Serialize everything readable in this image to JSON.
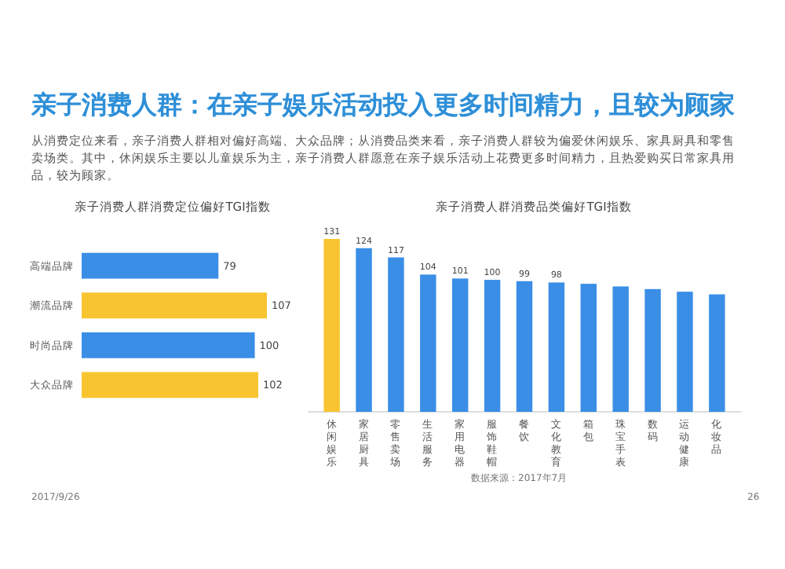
{
  "chart_data": [
    {
      "type": "other",
      "title": "亲子消费人群：在亲子娱乐活动投入更多时间精力，且较为顾家",
      "subtitle": "从消费定位来看，亲子消费人群相对偏好高端、大众品牌；从消费品类来看，亲子消费人群较为偏爱休闲娱乐、家具厨具和零售卖场类。其中，休闲娱乐主要以儿童娱乐为主，亲子消费人群愿意在亲子娱乐活动上花费更多时间精力，且热爱购买日常家具用品，较为顾家。",
      "annotations": [
        "数据来源：2017年7月",
        "2017/9/26",
        "26"
      ]
    },
    {
      "type": "bar",
      "orientation": "horizontal",
      "title": "亲子消费人群消费定位偏好TGI指数",
      "categories": [
        "高端品牌",
        "潮流品牌",
        "时尚品牌",
        "大众品牌"
      ],
      "values": [
        79,
        107,
        100,
        102
      ],
      "colors": [
        "#3a8ee6",
        "#f8c430",
        "#3a8ee6",
        "#f8c430"
      ],
      "data_labels": true
    },
    {
      "type": "bar",
      "title": "亲子消费人群消费品类偏好TGI指数",
      "categories": [
        "休闲娱乐",
        "家居厨具",
        "零售卖场",
        "生活服务",
        "家用电器",
        "服饰鞋帽",
        "餐饮",
        "文化教育",
        "箱包",
        "珠宝手表",
        "数码",
        "运动健康",
        "化妆品"
      ],
      "values": [
        131,
        124,
        117,
        104,
        101,
        100,
        99,
        98,
        97,
        95,
        93,
        91,
        89
      ],
      "colors": [
        "#f8c430",
        "#3a8ee6",
        "#3a8ee6",
        "#3a8ee6",
        "#3a8ee6",
        "#3a8ee6",
        "#3a8ee6",
        "#3a8ee6",
        "#3a8ee6",
        "#3a8ee6",
        "#3a8ee6",
        "#3a8ee6",
        "#3a8ee6"
      ],
      "value_labels": [
        "131",
        "124",
        "117",
        "104",
        "101",
        "100",
        "99",
        "98",
        null,
        null,
        null,
        null,
        null
      ]
    }
  ]
}
